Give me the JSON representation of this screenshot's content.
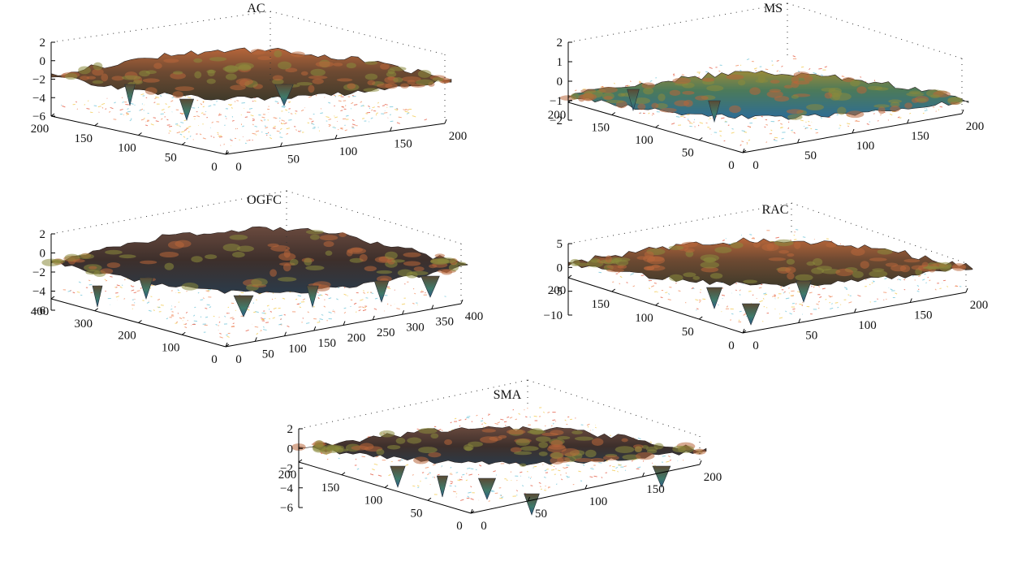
{
  "chart_data": [
    {
      "type": "surface",
      "title": "AC",
      "zlim": [
        -6,
        2
      ],
      "z_ticks": [
        "2",
        "0",
        "−2",
        "−4",
        "−6"
      ],
      "xlim": [
        0,
        200
      ],
      "x_ticks": [
        "0",
        "50",
        "100",
        "150",
        "200"
      ],
      "ylim": [
        0,
        200
      ],
      "y_ticks": [
        "0",
        "50",
        "100",
        "150",
        "200"
      ],
      "colormap": "jet",
      "contour_floor": true,
      "grid": true
    },
    {
      "type": "surface",
      "title": "MS",
      "zlim": [
        -2,
        2
      ],
      "z_ticks": [
        "2",
        "1",
        "0",
        "−1",
        "−2"
      ],
      "xlim": [
        0,
        200
      ],
      "x_ticks": [
        "0",
        "50",
        "100",
        "150",
        "200"
      ],
      "ylim": [
        0,
        200
      ],
      "y_ticks": [
        "0",
        "50",
        "100",
        "150",
        "200"
      ],
      "colormap": "jet",
      "contour_floor": true,
      "grid": true
    },
    {
      "type": "surface",
      "title": "OGFC",
      "zlim": [
        -6,
        2
      ],
      "z_ticks": [
        "2",
        "0",
        "−2",
        "−4",
        "−6"
      ],
      "xlim": [
        0,
        400
      ],
      "x_ticks": [
        "0",
        "50",
        "100",
        "150",
        "200",
        "250",
        "300",
        "350",
        "400"
      ],
      "ylim": [
        0,
        400
      ],
      "y_ticks": [
        "0",
        "100",
        "200",
        "300",
        "400"
      ],
      "colormap": "jet",
      "contour_floor": true,
      "grid": true
    },
    {
      "type": "surface",
      "title": "RAC",
      "zlim": [
        -10,
        5
      ],
      "z_ticks": [
        "5",
        "0",
        "−5",
        "−10"
      ],
      "xlim": [
        0,
        200
      ],
      "x_ticks": [
        "0",
        "50",
        "100",
        "150",
        "200"
      ],
      "ylim": [
        0,
        200
      ],
      "y_ticks": [
        "0",
        "50",
        "100",
        "150",
        "200"
      ],
      "colormap": "jet",
      "contour_floor": true,
      "grid": true
    },
    {
      "type": "surface",
      "title": "SMA",
      "zlim": [
        -6,
        2
      ],
      "z_ticks": [
        "2",
        "0",
        "−2",
        "−4",
        "−6"
      ],
      "xlim": [
        0,
        200
      ],
      "x_ticks": [
        "0",
        "50",
        "100",
        "150",
        "200"
      ],
      "ylim": [
        0,
        200
      ],
      "y_ticks": [
        "0",
        "50",
        "100",
        "150",
        "200"
      ],
      "colormap": "jet",
      "contour_floor": true,
      "grid": true
    }
  ],
  "colors": {
    "surface_main": "#5a3a2e",
    "surface_warm": "#b8663a",
    "surface_olive": "#8a8a3c",
    "surface_blue": "#2f6f9a",
    "contour_red": "#e2563e",
    "contour_yellow": "#f2c94c",
    "contour_cyan": "#6cc3d8",
    "axis": "#000000"
  }
}
